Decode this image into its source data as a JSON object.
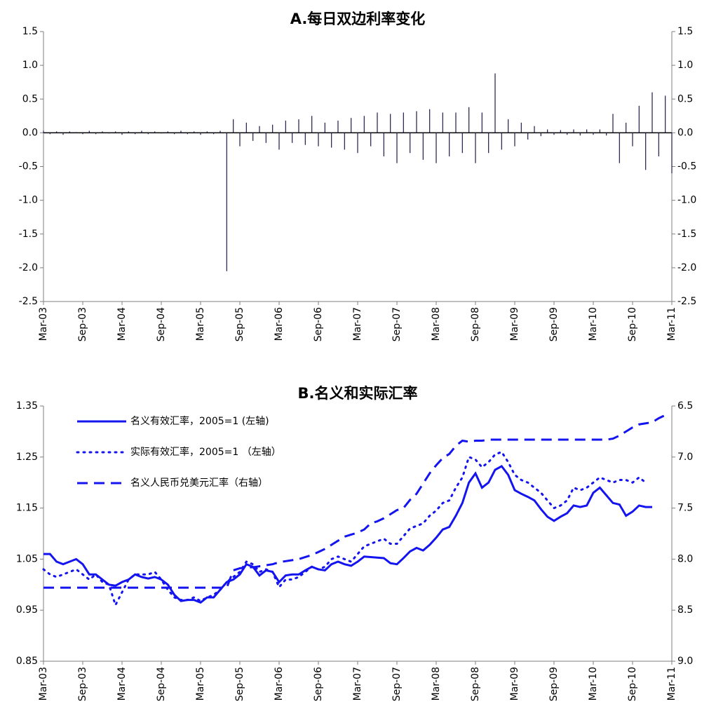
{
  "chart_data": [
    {
      "type": "bar",
      "title": "A.每日双边利率变化",
      "color": "#1c1c4a",
      "right_axis_mirror": true,
      "categories": [
        "Mar-03",
        null,
        null,
        null,
        null,
        null,
        "Sep-03",
        null,
        null,
        null,
        null,
        null,
        "Mar-04",
        null,
        null,
        null,
        null,
        null,
        "Sep-04",
        null,
        null,
        null,
        null,
        null,
        "Mar-05",
        null,
        null,
        null,
        null,
        null,
        "Sep-05",
        null,
        null,
        null,
        null,
        null,
        "Mar-06",
        null,
        null,
        null,
        null,
        null,
        "Sep-06",
        null,
        null,
        null,
        null,
        null,
        "Mar-07",
        null,
        null,
        null,
        null,
        null,
        "Sep-07",
        null,
        null,
        null,
        null,
        null,
        "Mar-08",
        null,
        null,
        null,
        null,
        null,
        "Sep-08",
        null,
        null,
        null,
        null,
        null,
        "Mar-09",
        null,
        null,
        null,
        null,
        null,
        "Sep-09",
        null,
        null,
        null,
        null,
        null,
        "Mar-10",
        null,
        null,
        null,
        null,
        null,
        "Sep-10",
        null,
        null,
        null,
        null,
        null,
        "Mar-11"
      ],
      "values": [
        0.03,
        -0.02,
        0.02,
        -0.03,
        0.02,
        0.01,
        -0.02,
        0.03,
        -0.02,
        0.02,
        -0.01,
        0.02,
        -0.03,
        0.02,
        -0.02,
        0.03,
        -0.02,
        0.02,
        -0.01,
        0.02,
        -0.02,
        0.03,
        -0.02,
        0.02,
        -0.03,
        0.02,
        -0.02,
        0.03,
        -2.05,
        0.2,
        -0.2,
        0.15,
        -0.12,
        0.1,
        -0.15,
        0.12,
        -0.25,
        0.18,
        -0.15,
        0.2,
        -0.18,
        0.25,
        -0.2,
        0.15,
        -0.22,
        0.18,
        -0.25,
        0.22,
        -0.3,
        0.25,
        -0.2,
        0.3,
        -0.35,
        0.28,
        -0.45,
        0.3,
        -0.3,
        0.32,
        -0.4,
        0.35,
        -0.45,
        0.3,
        -0.35,
        0.3,
        -0.3,
        0.38,
        -0.45,
        0.3,
        -0.3,
        0.88,
        -0.25,
        0.2,
        -0.2,
        0.15,
        -0.1,
        0.1,
        -0.05,
        0.05,
        -0.03,
        0.04,
        -0.03,
        0.05,
        -0.04,
        0.05,
        -0.03,
        0.05,
        -0.04,
        0.28,
        -0.45,
        0.15,
        -0.2,
        0.4,
        -0.55,
        0.6,
        -0.35,
        0.55,
        -0.6
      ],
      "ylim": [
        -2.5,
        1.5
      ],
      "yticks": [
        1.5,
        {
          "value": 1,
          "label": "1.0"
        },
        0.5,
        {
          "value": 0,
          "label": "0.0"
        },
        -0.5,
        {
          "value": -1,
          "label": "-1.0"
        },
        -1.5,
        {
          "value": -2,
          "label": "-2.0"
        },
        -2.5
      ]
    },
    {
      "type": "line",
      "title": "B.名义和实际汇率",
      "legend": "upper left",
      "categories": [
        "Mar-03",
        null,
        null,
        null,
        null,
        null,
        "Sep-03",
        null,
        null,
        null,
        null,
        null,
        "Mar-04",
        null,
        null,
        null,
        null,
        null,
        "Sep-04",
        null,
        null,
        null,
        null,
        null,
        "Mar-05",
        null,
        null,
        null,
        null,
        null,
        "Sep-05",
        null,
        null,
        null,
        null,
        null,
        "Mar-06",
        null,
        null,
        null,
        null,
        null,
        "Sep-06",
        null,
        null,
        null,
        null,
        null,
        "Mar-07",
        null,
        null,
        null,
        null,
        null,
        "Sep-07",
        null,
        null,
        null,
        null,
        null,
        "Mar-08",
        null,
        null,
        null,
        null,
        null,
        "Sep-08",
        null,
        null,
        null,
        null,
        null,
        "Mar-09",
        null,
        null,
        null,
        null,
        null,
        "Sep-09",
        null,
        null,
        null,
        null,
        null,
        "Mar-10",
        null,
        null,
        null,
        null,
        null,
        "Sep-10",
        null,
        null,
        null,
        null,
        null,
        "Mar-11"
      ],
      "series": [
        {
          "name": "名义有效汇率，2005=1 (左轴)",
          "color": "#1414f0",
          "dash": "solid",
          "values": [
            1.06,
            1.06,
            1.045,
            1.04,
            1.045,
            1.05,
            1.04,
            1.02,
            1.02,
            1.01,
            1.0,
            0.998,
            1.005,
            1.01,
            1.02,
            1.015,
            1.012,
            1.015,
            1.01,
            1.0,
            0.98,
            0.968,
            0.97,
            0.97,
            0.965,
            0.975,
            0.975,
            0.99,
            1.005,
            1.01,
            1.02,
            1.04,
            1.035,
            1.018,
            1.028,
            1.025,
            1.005,
            1.018,
            1.02,
            1.02,
            1.028,
            1.035,
            1.03,
            1.028,
            1.04,
            1.045,
            1.04,
            1.037,
            1.045,
            1.055,
            1.054,
            1.053,
            1.052,
            1.042,
            1.04,
            1.052,
            1.065,
            1.072,
            1.067,
            1.078,
            1.092,
            1.108,
            1.113,
            1.135,
            1.16,
            1.2,
            1.218,
            1.19,
            1.2,
            1.225,
            1.232,
            1.215,
            1.185,
            1.178,
            1.172,
            1.165,
            1.148,
            1.133,
            1.125,
            1.133,
            1.14,
            1.155,
            1.152,
            1.155,
            1.18,
            1.19,
            1.175,
            1.16,
            1.157,
            1.135,
            1.143,
            1.155,
            1.152,
            1.152,
            null,
            null,
            null
          ]
        },
        {
          "name": "实际有效汇率，2005=1 （左轴）",
          "color": "#1414f0",
          "dash": "dotted",
          "values": [
            1.03,
            1.02,
            1.015,
            1.02,
            1.025,
            1.03,
            1.02,
            1.01,
            1.02,
            1.005,
            1.0,
            0.96,
            0.985,
            1.01,
            1.02,
            1.02,
            1.02,
            1.025,
            1.01,
            0.99,
            0.975,
            0.97,
            0.97,
            0.975,
            0.968,
            0.975,
            0.98,
            0.99,
            1.005,
            1.015,
            1.025,
            1.045,
            1.04,
            1.025,
            1.03,
            1.025,
            0.995,
            1.01,
            1.01,
            1.015,
            1.025,
            1.035,
            1.03,
            1.035,
            1.05,
            1.055,
            1.05,
            1.045,
            1.06,
            1.075,
            1.08,
            1.085,
            1.09,
            1.08,
            1.08,
            1.095,
            1.11,
            1.115,
            1.12,
            1.135,
            1.145,
            1.16,
            1.165,
            1.19,
            1.21,
            1.25,
            1.245,
            1.23,
            1.24,
            1.255,
            1.26,
            1.24,
            1.215,
            1.205,
            1.2,
            1.19,
            1.18,
            1.165,
            1.15,
            1.155,
            1.165,
            1.19,
            1.185,
            1.19,
            1.2,
            1.21,
            1.205,
            1.2,
            1.205,
            1.205,
            1.2,
            1.21,
            1.2,
            null,
            null,
            null,
            null
          ]
        },
        {
          "name": "名义人民币兑美元汇率（右轴）",
          "color": "#1414f0",
          "dash": "dashed",
          "axis": "y2",
          "values": [
            8.28,
            8.28,
            8.28,
            8.28,
            8.28,
            8.28,
            8.28,
            8.28,
            8.28,
            8.28,
            8.28,
            8.28,
            8.28,
            8.28,
            8.28,
            8.28,
            8.28,
            8.28,
            8.28,
            8.28,
            8.28,
            8.28,
            8.28,
            8.28,
            8.28,
            8.28,
            8.28,
            8.28,
            8.28,
            8.11,
            8.09,
            8.08,
            8.08,
            8.07,
            8.06,
            8.05,
            8.03,
            8.02,
            8.01,
            8.0,
            7.98,
            7.96,
            7.93,
            7.9,
            7.86,
            7.82,
            7.78,
            7.76,
            7.74,
            7.71,
            7.65,
            7.63,
            7.6,
            7.56,
            7.52,
            7.5,
            7.42,
            7.36,
            7.26,
            7.16,
            7.08,
            7.01,
            6.97,
            6.89,
            6.84,
            6.85,
            6.84,
            6.84,
            6.83,
            6.83,
            6.83,
            6.83,
            6.83,
            6.83,
            6.83,
            6.83,
            6.83,
            6.83,
            6.83,
            6.83,
            6.83,
            6.83,
            6.83,
            6.83,
            6.83,
            6.83,
            6.83,
            6.82,
            6.79,
            6.75,
            6.71,
            6.68,
            6.67,
            6.66,
            6.62,
            6.59,
            null
          ]
        }
      ],
      "ylim": [
        0.85,
        1.35
      ],
      "yticks": [
        0.85,
        0.95,
        1.05,
        1.15,
        1.25,
        1.35
      ],
      "y2lim": [
        9,
        6.5
      ],
      "y2ticks": [
        6.5,
        {
          "value": 7,
          "label": "7.0"
        },
        7.5,
        {
          "value": 8,
          "label": "8.0"
        },
        8.5,
        {
          "value": 9,
          "label": "9.0"
        }
      ]
    }
  ]
}
